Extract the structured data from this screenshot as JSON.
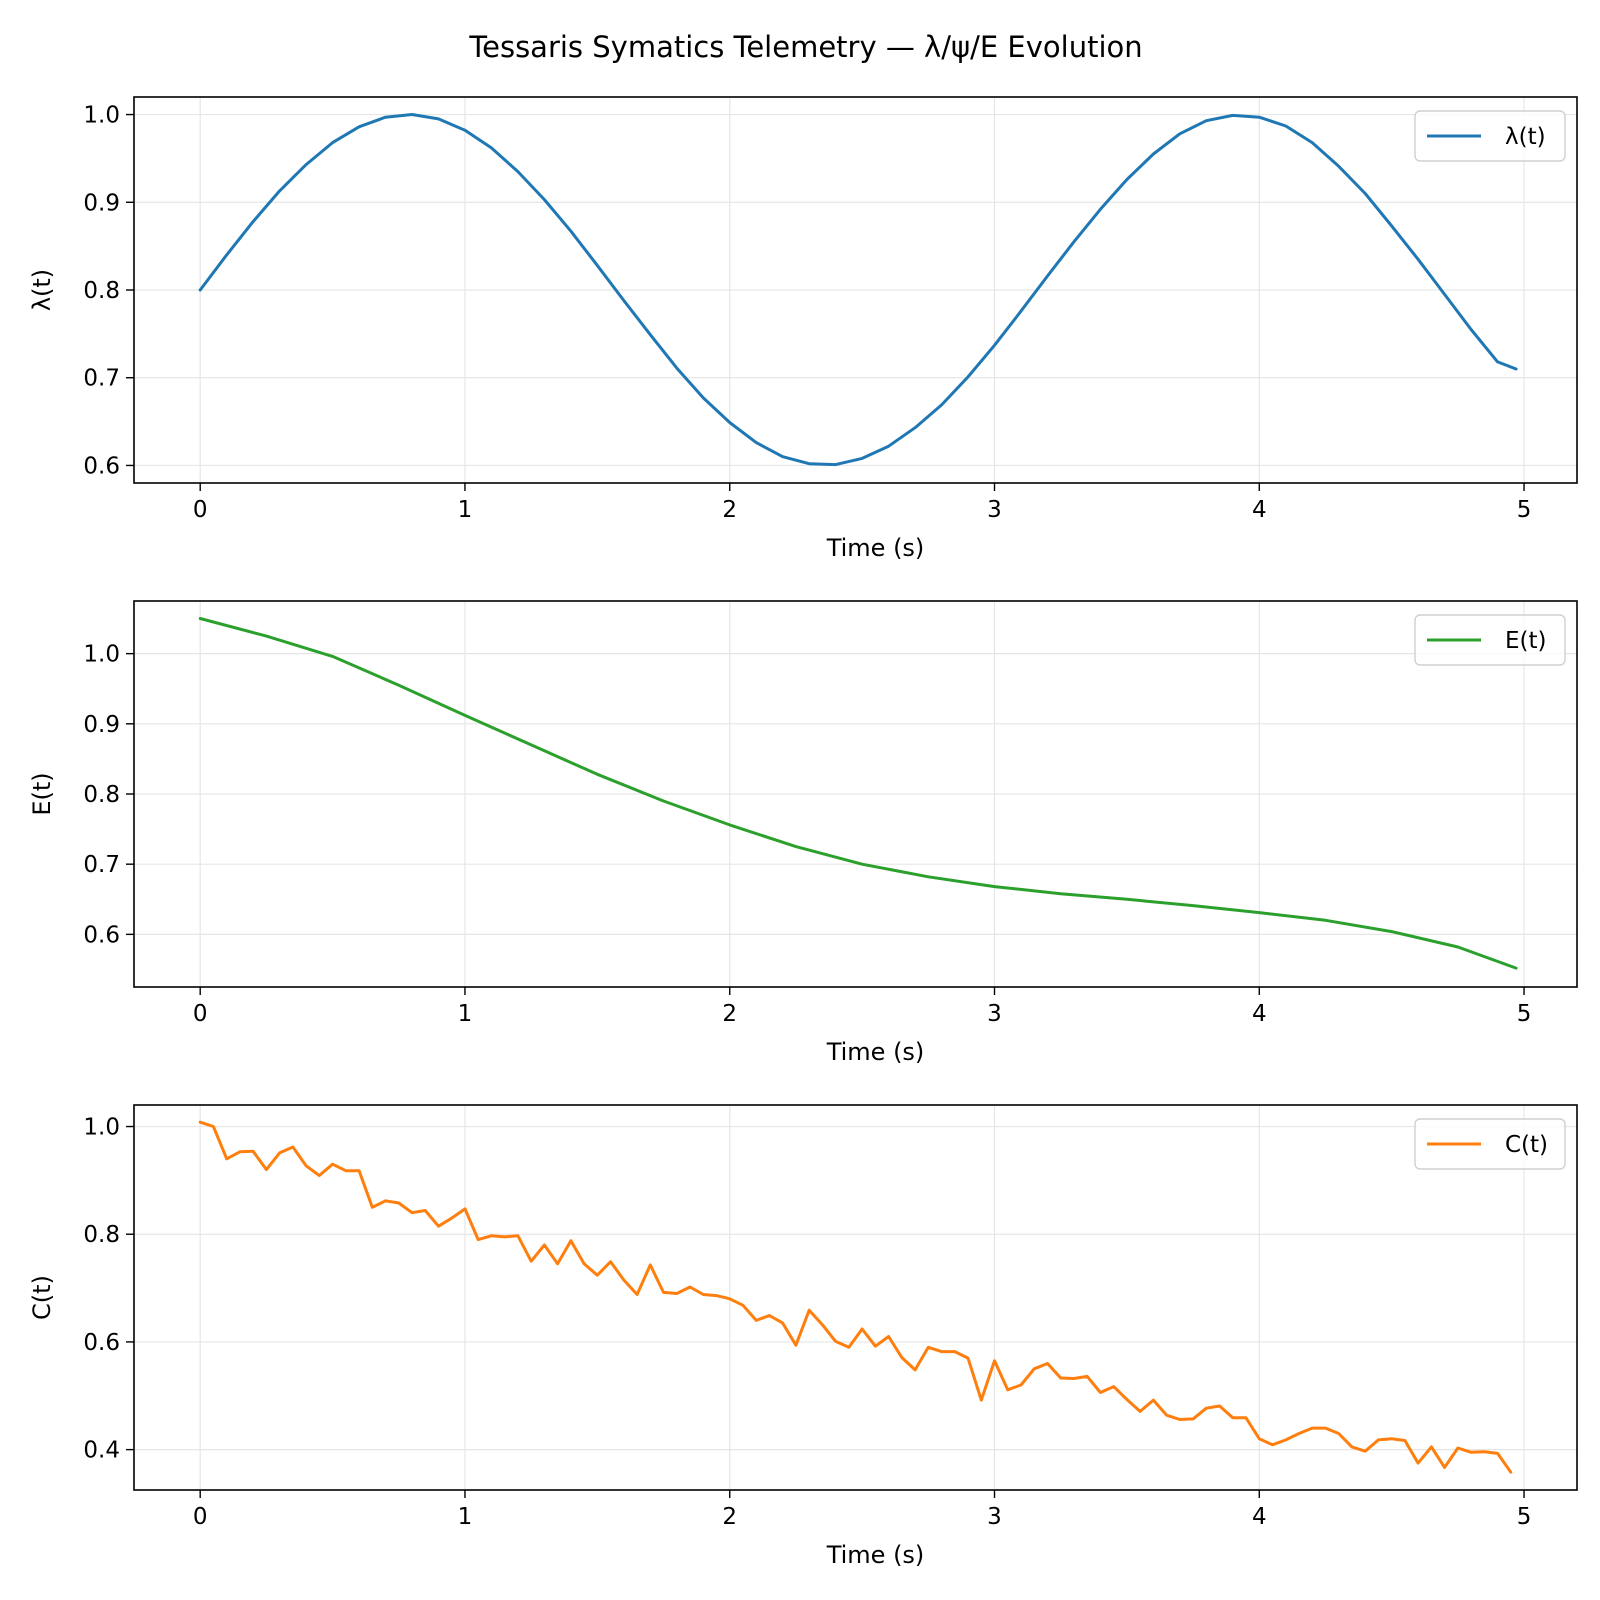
{
  "figure": {
    "title": "Tessaris Symatics Telemetry — λ/ψ/E Evolution"
  },
  "chart_data": [
    {
      "type": "line",
      "xlabel": "Time (s)",
      "ylabel": "λ(t)",
      "xlim": [
        -0.25,
        5.2
      ],
      "ylim": [
        0.58,
        1.02
      ],
      "xticks": [
        0,
        1,
        2,
        3,
        4,
        5
      ],
      "xtick_labels": [
        "0",
        "1",
        "2",
        "3",
        "4",
        "5"
      ],
      "yticks": [
        0.6,
        0.7,
        0.8,
        0.9,
        1.0
      ],
      "ytick_labels": [
        "0.6",
        "0.7",
        "0.8",
        "0.9",
        "1.0"
      ],
      "grid": true,
      "legend": "top-right",
      "series": [
        {
          "name": "λ(t)",
          "color": "#1f77b4",
          "x": [
            0.0,
            0.1,
            0.2,
            0.3,
            0.4,
            0.5,
            0.6,
            0.7,
            0.8,
            0.9,
            1.0,
            1.1,
            1.2,
            1.3,
            1.4,
            1.5,
            1.6,
            1.7,
            1.8,
            1.9,
            2.0,
            2.1,
            2.2,
            2.3,
            2.4,
            2.5,
            2.6,
            2.7,
            2.8,
            2.9,
            3.0,
            3.1,
            3.2,
            3.3,
            3.4,
            3.5,
            3.6,
            3.7,
            3.8,
            3.9,
            4.0,
            4.1,
            4.2,
            4.3,
            4.4,
            4.5,
            4.6,
            4.7,
            4.8,
            4.9,
            4.97
          ],
          "y": [
            0.8,
            0.84,
            0.878,
            0.913,
            0.943,
            0.968,
            0.986,
            0.997,
            1.0,
            0.995,
            0.982,
            0.962,
            0.935,
            0.903,
            0.867,
            0.828,
            0.788,
            0.749,
            0.711,
            0.677,
            0.649,
            0.626,
            0.61,
            0.602,
            0.601,
            0.608,
            0.622,
            0.643,
            0.669,
            0.701,
            0.737,
            0.776,
            0.816,
            0.855,
            0.892,
            0.926,
            0.955,
            0.978,
            0.993,
            0.999,
            0.997,
            0.987,
            0.968,
            0.941,
            0.91,
            0.873,
            0.835,
            0.795,
            0.755,
            0.718,
            0.71
          ]
        }
      ]
    },
    {
      "type": "line",
      "xlabel": "Time (s)",
      "ylabel": "E(t)",
      "xlim": [
        -0.25,
        5.2
      ],
      "ylim": [
        0.525,
        1.075
      ],
      "xticks": [
        0,
        1,
        2,
        3,
        4,
        5
      ],
      "xtick_labels": [
        "0",
        "1",
        "2",
        "3",
        "4",
        "5"
      ],
      "yticks": [
        0.6,
        0.7,
        0.8,
        0.9,
        1.0
      ],
      "ytick_labels": [
        "0.6",
        "0.7",
        "0.8",
        "0.9",
        "1.0"
      ],
      "grid": true,
      "legend": "top-right",
      "series": [
        {
          "name": "E(t)",
          "color": "#2ca02c",
          "x": [
            0.0,
            0.25,
            0.5,
            0.75,
            1.0,
            1.25,
            1.5,
            1.75,
            2.0,
            2.25,
            2.5,
            2.75,
            3.0,
            3.25,
            3.5,
            3.75,
            4.0,
            4.25,
            4.5,
            4.75,
            4.97
          ],
          "y": [
            1.05,
            1.025,
            0.996,
            0.955,
            0.912,
            0.87,
            0.828,
            0.79,
            0.756,
            0.725,
            0.7,
            0.682,
            0.668,
            0.658,
            0.65,
            0.641,
            0.631,
            0.62,
            0.604,
            0.582,
            0.552
          ]
        }
      ]
    },
    {
      "type": "line",
      "xlabel": "Time (s)",
      "ylabel": "C(t)",
      "xlim": [
        -0.25,
        5.2
      ],
      "ylim": [
        0.325,
        1.04
      ],
      "xticks": [
        0,
        1,
        2,
        3,
        4,
        5
      ],
      "xtick_labels": [
        "0",
        "1",
        "2",
        "3",
        "4",
        "5"
      ],
      "yticks": [
        0.4,
        0.6,
        0.8,
        1.0
      ],
      "ytick_labels": [
        "0.4",
        "0.6",
        "0.8",
        "1.0"
      ],
      "grid": true,
      "legend": "top-right",
      "series": [
        {
          "name": "C(t)",
          "color": "#ff7f0e",
          "x": [
            0.0,
            0.05,
            0.1,
            0.15,
            0.2,
            0.25,
            0.3,
            0.35,
            0.4,
            0.45,
            0.5,
            0.55,
            0.6,
            0.65,
            0.7,
            0.75,
            0.8,
            0.85,
            0.9,
            0.95,
            1.0,
            1.05,
            1.1,
            1.15,
            1.2,
            1.25,
            1.3,
            1.35,
            1.4,
            1.45,
            1.5,
            1.55,
            1.6,
            1.65,
            1.7,
            1.75,
            1.8,
            1.85,
            1.9,
            1.95,
            2.0,
            2.05,
            2.1,
            2.15,
            2.2,
            2.25,
            2.3,
            2.35,
            2.4,
            2.45,
            2.5,
            2.55,
            2.6,
            2.65,
            2.7,
            2.75,
            2.8,
            2.85,
            2.9,
            2.95,
            3.0,
            3.05,
            3.1,
            3.15,
            3.2,
            3.25,
            3.3,
            3.35,
            3.4,
            3.45,
            3.5,
            3.55,
            3.6,
            3.65,
            3.7,
            3.75,
            3.8,
            3.85,
            3.9,
            3.95,
            4.0,
            4.05,
            4.1,
            4.15,
            4.2,
            4.25,
            4.3,
            4.35,
            4.4,
            4.45,
            4.5,
            4.55,
            4.6,
            4.65,
            4.7,
            4.75,
            4.8,
            4.85,
            4.9,
            4.95
          ],
          "y": [
            1.008,
            1.0,
            0.94,
            0.953,
            0.954,
            0.92,
            0.951,
            0.962,
            0.927,
            0.909,
            0.93,
            0.918,
            0.918,
            0.85,
            0.862,
            0.858,
            0.84,
            0.844,
            0.815,
            0.83,
            0.847,
            0.79,
            0.797,
            0.795,
            0.797,
            0.75,
            0.78,
            0.745,
            0.788,
            0.745,
            0.724,
            0.749,
            0.715,
            0.688,
            0.743,
            0.692,
            0.69,
            0.702,
            0.688,
            0.686,
            0.68,
            0.668,
            0.64,
            0.649,
            0.635,
            0.594,
            0.659,
            0.632,
            0.601,
            0.59,
            0.624,
            0.592,
            0.61,
            0.571,
            0.548,
            0.59,
            0.582,
            0.582,
            0.57,
            0.492,
            0.565,
            0.511,
            0.52,
            0.55,
            0.56,
            0.533,
            0.532,
            0.536,
            0.506,
            0.517,
            0.493,
            0.471,
            0.492,
            0.464,
            0.456,
            0.457,
            0.477,
            0.481,
            0.459,
            0.459,
            0.42,
            0.409,
            0.418,
            0.43,
            0.44,
            0.44,
            0.43,
            0.405,
            0.397,
            0.418,
            0.42,
            0.417,
            0.375,
            0.405,
            0.367,
            0.403,
            0.395,
            0.396,
            0.393,
            0.358
          ]
        }
      ]
    }
  ]
}
